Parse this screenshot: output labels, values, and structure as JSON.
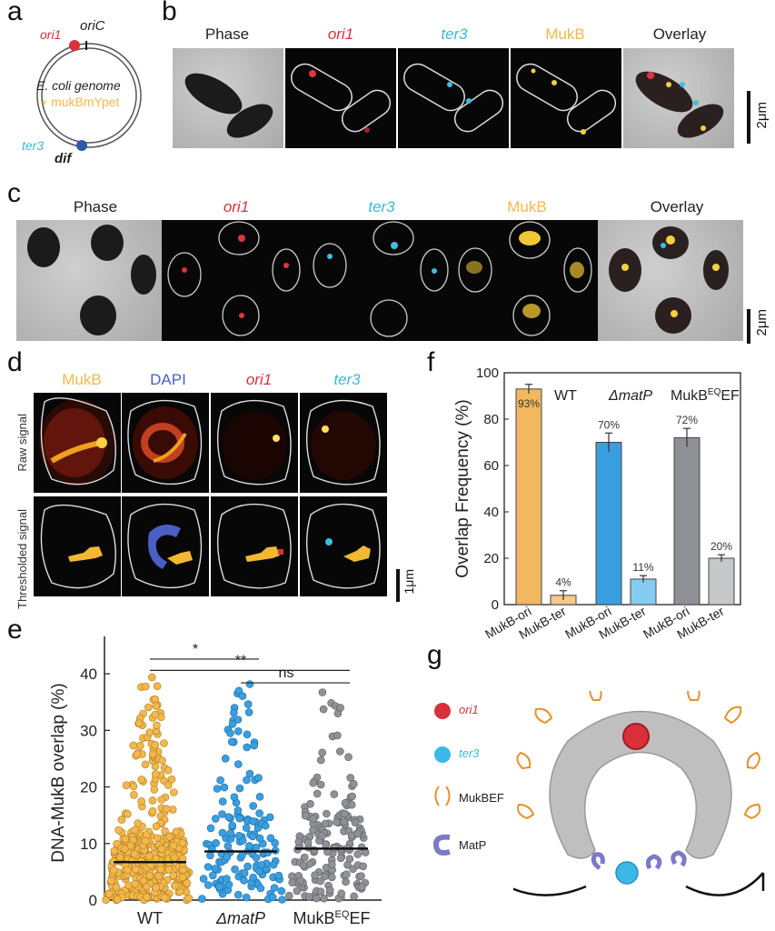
{
  "panel_labels": {
    "a": "a",
    "b": "b",
    "c": "c",
    "d": "d",
    "e": "e",
    "f": "f",
    "g": "g"
  },
  "panel_a": {
    "ori1": "ori1",
    "oriC": "oriC",
    "genome_line1": "E. coli genome",
    "genome_line2": "+ mukBmYpet",
    "ter3": "ter3",
    "dif": "dif"
  },
  "panel_b": {
    "channels": [
      "Phase",
      "ori1",
      "ter3",
      "MukB",
      "Overlay"
    ],
    "scale": "2μm"
  },
  "panel_c": {
    "channels": [
      "Phase",
      "ori1",
      "ter3",
      "MukB",
      "Overlay"
    ],
    "scale": "2μm"
  },
  "panel_d": {
    "channels": [
      "MukB",
      "DAPI",
      "ori1",
      "ter3"
    ],
    "row1": "Raw signal",
    "row2": "Thresholded signal",
    "scale": "1μm"
  },
  "colors": {
    "ori": "#d9303b",
    "ter": "#3ab8d8",
    "mukb": "#f2b84b",
    "dapi": "#4a5fc4",
    "wt": "#f2b84b",
    "matp": "#3a9fe0",
    "eq": "#8f9196"
  },
  "chart_data": [
    {
      "panel": "e",
      "type": "scatter",
      "ylabel": "DNA-MukB overlap (%)",
      "ylim": [
        0,
        45
      ],
      "yticks": [
        0,
        10,
        20,
        30,
        40
      ],
      "categories": [
        "WT",
        "ΔmatP",
        "MukBEQEF"
      ],
      "category_labels": {
        "wt": "WT",
        "matp": "ΔmatP",
        "eq_main": "MukB",
        "eq_sup": "EQ",
        "eq_tail": "EF"
      },
      "medians": [
        6.7,
        8.6,
        9.1
      ],
      "max_values": [
        40,
        40,
        38
      ],
      "significance": [
        {
          "pair": [
            "WT",
            "ΔmatP"
          ],
          "label": "*"
        },
        {
          "pair": [
            "WT",
            "MukBEQEF"
          ],
          "label": "**"
        },
        {
          "pair": [
            "ΔmatP",
            "MukBEQEF"
          ],
          "label": "ns"
        }
      ]
    },
    {
      "panel": "f",
      "type": "bar",
      "ylabel": "Overlap Frequency (%)",
      "ylim": [
        0,
        100
      ],
      "yticks": [
        0,
        20,
        40,
        60,
        80,
        100
      ],
      "groups": [
        {
          "name": "WT",
          "bars": [
            {
              "label": "MukB-ori",
              "value": 93,
              "error": 2,
              "text": "93%"
            },
            {
              "label": "MukB-ter",
              "value": 4,
              "error": 2,
              "text": "4%"
            }
          ]
        },
        {
          "name": "ΔmatP",
          "bars": [
            {
              "label": "MukB-ori",
              "value": 70,
              "error": 4,
              "text": "70%"
            },
            {
              "label": "MukB-ter",
              "value": 11,
              "error": 1.5,
              "text": "11%"
            }
          ]
        },
        {
          "name": "MukBEQEF",
          "bars": [
            {
              "label": "MukB-ori",
              "value": 72,
              "error": 4,
              "text": "72%"
            },
            {
              "label": "MukB-ter",
              "value": 20,
              "error": 1.5,
              "text": "20%"
            }
          ]
        }
      ],
      "group_labels": {
        "wt": "WT",
        "matp": "ΔmatP",
        "eq_main": "MukB",
        "eq_sup": "EQ",
        "eq_tail": "EF"
      }
    }
  ],
  "panel_g": {
    "legend": [
      "ori1",
      "ter3",
      "MukBEF",
      "MatP"
    ]
  }
}
